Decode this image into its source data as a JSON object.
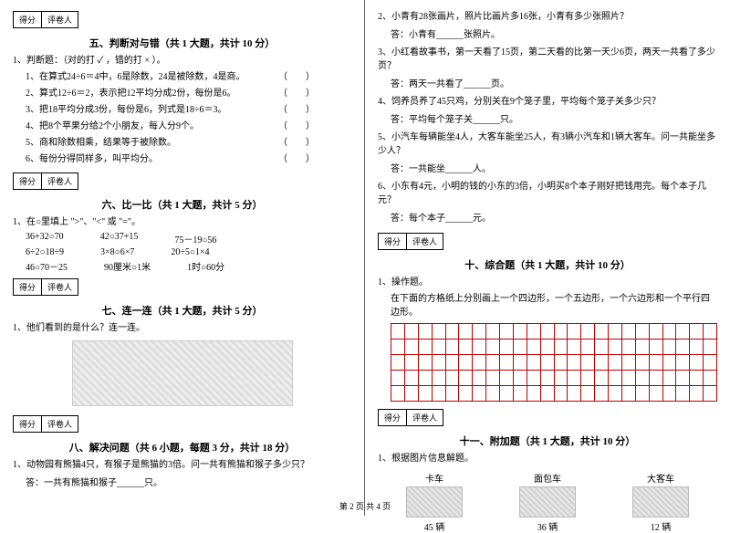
{
  "scorebox": {
    "score": "得分",
    "grader": "评卷人"
  },
  "sec5": {
    "title": "五、判断对与错（共 1 大题，共计 10 分）",
    "intro": "1、判断题：（对的打 ✓ ，错的打 × ）。",
    "items": [
      "1、在算式24÷6＝4中，6是除数，24是被除数，4是商。",
      "2、算式12÷6＝2，表示把12平均分成2份，每份是6。",
      "3、把18平均分成3份，每份是6，列式是18÷6＝3。",
      "4、把8个苹果分给2个小朋友，每人分9个。",
      "5、商和除数相乘，结果等于被除数。",
      "6、每份分得同样多，叫平均分。"
    ]
  },
  "sec6": {
    "title": "六、比一比（共 1 大题，共计 5 分）",
    "intro": "1、在○里填上 \">\"、\"<\" 或 \"=\"。",
    "rows": [
      [
        "36+32○70",
        "42○37+15",
        "75－19○56"
      ],
      [
        "6÷2○18÷9",
        "3×8○6×7",
        "20÷5○1×4"
      ],
      [
        "46○70－25",
        "90厘米○1米",
        "1时○60分"
      ]
    ]
  },
  "sec7": {
    "title": "七、连一连（共 1 大题，共计 5 分）",
    "q": "1、他们看到的是什么？连一连。"
  },
  "sec8": {
    "title": "八、解决问题（共 6 小题，每题 3 分，共计 18 分）",
    "q1": "1、动物园有熊猫4只，有猴子是熊猫的3倍。问一共有熊猫和猴子多少只？",
    "a1": "答：一共有熊猫和猴子______只。",
    "q2": "2、小青有28张画片，照片比画片多16张，小青有多少张照片？",
    "a2": "答：小青有______张照片。",
    "q3": "3、小红看故事书，第一天看了15页，第二天看的比第一天少6页，两天一共看了多少页？",
    "a3": "答：两天一共看了______页。",
    "q4": "4、饲养员养了45只鸡，分别关在9个笼子里，平均每个笼子关多少只？",
    "a4": "答：平均每个笼子关______只。",
    "q5": "5、小汽车每辆能坐4人，大客车能坐25人，有3辆小汽车和1辆大客车。问一共能坐多少人？",
    "a5": "答：一共能坐______人。",
    "q6": "6、小东有4元，小明的钱的小东的3倍，小明买8个本子刚好把钱用完。每个本子几元？",
    "a6": "答：每个本子______元。"
  },
  "sec10": {
    "title": "十、综合题（共 1 大题，共计 10 分）",
    "q": "1、操作题。",
    "sub": "在下面的方格纸上分别画上一个四边形，一个五边形，一个六边形和一个平行四边形。",
    "grid_rows": 5,
    "grid_cols": 24,
    "grid_color": "#b00"
  },
  "sec11": {
    "title": "十一、附加题（共 1 大题，共计 10 分）",
    "q": "1、根据图片信息解题。",
    "vehicles": [
      {
        "name": "卡车",
        "count": "45 辆"
      },
      {
        "name": "面包车",
        "count": "36 辆"
      },
      {
        "name": "大客车",
        "count": "12 辆"
      }
    ]
  },
  "footer": "第 2 页 共 4 页"
}
